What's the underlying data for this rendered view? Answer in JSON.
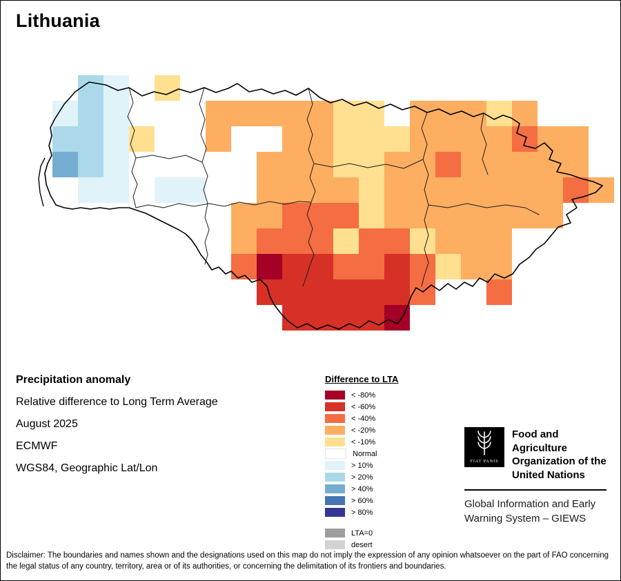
{
  "page": {
    "title": "Lithuania"
  },
  "info": {
    "heading": "Precipitation anomaly",
    "subtitle": "Relative difference to Long Term Average",
    "period": "August 2025",
    "source": "ECMWF",
    "projection": "WGS84, Geographic Lat/Lon"
  },
  "legend": {
    "title": "Difference to LTA",
    "items": [
      {
        "label": "< -80%",
        "color": "#a50026"
      },
      {
        "label": "< -60%",
        "color": "#d73027"
      },
      {
        "label": "< -40%",
        "color": "#f46d43"
      },
      {
        "label": "< -20%",
        "color": "#fdae61"
      },
      {
        "label": "< -10%",
        "color": "#fee090"
      },
      {
        "label": "Normal",
        "color": "#ffffff"
      },
      {
        "label": "> 10%",
        "color": "#e0f3f8"
      },
      {
        "label": "> 20%",
        "color": "#abd9e9"
      },
      {
        "label": "> 40%",
        "color": "#74add1"
      },
      {
        "label": "> 60%",
        "color": "#4575b4"
      },
      {
        "label": "> 80%",
        "color": "#313695"
      }
    ],
    "extra_items": [
      {
        "label": "LTA=0",
        "color": "#9e9e9e"
      },
      {
        "label": "desert",
        "color": "#d2d2d2"
      }
    ]
  },
  "fao": {
    "logo_motto": "FIAT PANIS",
    "org_lines": [
      "Food and Agriculture",
      "Organization of the",
      "United Nations"
    ],
    "giews_lines": [
      "Global Information and Early",
      "Warning System – GIEWS"
    ]
  },
  "disclaimer": "Disclaimer: The boundaries and names shown and the designations used on this map do not imply the expression of any opinion whatsoever on the part of FAO concerning the legal status of any country, territory, area or of its authorities, or concerning the delimitation of its frontiers and boundaries.",
  "map": {
    "palette": {
      "A": "#a50026",
      "B": "#d73027",
      "C": "#f46d43",
      "D": "#fdae61",
      "E": "#fee090",
      "F": "#e0f3f8",
      "G": "#abd9e9",
      "H": "#74add1",
      "I": "#4575b4",
      "J": "#313695"
    },
    "cells": [
      [
        1,
        0,
        "G"
      ],
      [
        2,
        0,
        "F"
      ],
      [
        4,
        0,
        "E"
      ],
      [
        0,
        1,
        "F"
      ],
      [
        1,
        1,
        "G"
      ],
      [
        2,
        1,
        "F"
      ],
      [
        6,
        1,
        "D"
      ],
      [
        7,
        1,
        "D"
      ],
      [
        8,
        1,
        "D"
      ],
      [
        9,
        1,
        "D"
      ],
      [
        10,
        1,
        "D"
      ],
      [
        11,
        1,
        "E"
      ],
      [
        12,
        1,
        "E"
      ],
      [
        14,
        1,
        "D"
      ],
      [
        15,
        1,
        "D"
      ],
      [
        16,
        1,
        "D"
      ],
      [
        17,
        1,
        "E"
      ],
      [
        18,
        1,
        "D"
      ],
      [
        0,
        2,
        "G"
      ],
      [
        1,
        2,
        "G"
      ],
      [
        2,
        2,
        "F"
      ],
      [
        3,
        2,
        "E"
      ],
      [
        6,
        2,
        "D"
      ],
      [
        9,
        2,
        "D"
      ],
      [
        10,
        2,
        "D"
      ],
      [
        11,
        2,
        "E"
      ],
      [
        12,
        2,
        "E"
      ],
      [
        13,
        2,
        "E"
      ],
      [
        14,
        2,
        "D"
      ],
      [
        15,
        2,
        "D"
      ],
      [
        16,
        2,
        "D"
      ],
      [
        17,
        2,
        "D"
      ],
      [
        18,
        2,
        "C"
      ],
      [
        19,
        2,
        "D"
      ],
      [
        20,
        2,
        "D"
      ],
      [
        0,
        3,
        "H"
      ],
      [
        1,
        3,
        "G"
      ],
      [
        2,
        3,
        "F"
      ],
      [
        8,
        3,
        "D"
      ],
      [
        9,
        3,
        "D"
      ],
      [
        10,
        3,
        "D"
      ],
      [
        11,
        3,
        "E"
      ],
      [
        12,
        3,
        "E"
      ],
      [
        13,
        3,
        "D"
      ],
      [
        14,
        3,
        "D"
      ],
      [
        15,
        3,
        "C"
      ],
      [
        16,
        3,
        "D"
      ],
      [
        17,
        3,
        "D"
      ],
      [
        18,
        3,
        "D"
      ],
      [
        19,
        3,
        "D"
      ],
      [
        20,
        3,
        "D"
      ],
      [
        1,
        4,
        "F"
      ],
      [
        2,
        4,
        "F"
      ],
      [
        4,
        4,
        "F"
      ],
      [
        5,
        4,
        "F"
      ],
      [
        8,
        4,
        "D"
      ],
      [
        9,
        4,
        "D"
      ],
      [
        10,
        4,
        "D"
      ],
      [
        11,
        4,
        "D"
      ],
      [
        12,
        4,
        "E"
      ],
      [
        13,
        4,
        "D"
      ],
      [
        14,
        4,
        "D"
      ],
      [
        15,
        4,
        "D"
      ],
      [
        16,
        4,
        "D"
      ],
      [
        17,
        4,
        "D"
      ],
      [
        18,
        4,
        "D"
      ],
      [
        19,
        4,
        "D"
      ],
      [
        20,
        4,
        "C"
      ],
      [
        21,
        4,
        "D"
      ],
      [
        7,
        5,
        "D"
      ],
      [
        8,
        5,
        "D"
      ],
      [
        9,
        5,
        "C"
      ],
      [
        10,
        5,
        "C"
      ],
      [
        11,
        5,
        "C"
      ],
      [
        12,
        5,
        "E"
      ],
      [
        13,
        5,
        "D"
      ],
      [
        14,
        5,
        "D"
      ],
      [
        15,
        5,
        "D"
      ],
      [
        16,
        5,
        "D"
      ],
      [
        17,
        5,
        "D"
      ],
      [
        18,
        5,
        "D"
      ],
      [
        19,
        5,
        "D"
      ],
      [
        7,
        6,
        "D"
      ],
      [
        8,
        6,
        "C"
      ],
      [
        9,
        6,
        "C"
      ],
      [
        10,
        6,
        "C"
      ],
      [
        11,
        6,
        "E"
      ],
      [
        12,
        6,
        "C"
      ],
      [
        13,
        6,
        "C"
      ],
      [
        14,
        6,
        "E"
      ],
      [
        15,
        6,
        "D"
      ],
      [
        16,
        6,
        "D"
      ],
      [
        17,
        6,
        "D"
      ],
      [
        7,
        7,
        "C"
      ],
      [
        8,
        7,
        "A"
      ],
      [
        9,
        7,
        "B"
      ],
      [
        10,
        7,
        "B"
      ],
      [
        11,
        7,
        "C"
      ],
      [
        12,
        7,
        "C"
      ],
      [
        13,
        7,
        "B"
      ],
      [
        14,
        7,
        "C"
      ],
      [
        15,
        7,
        "E"
      ],
      [
        16,
        7,
        "D"
      ],
      [
        17,
        7,
        "D"
      ],
      [
        8,
        8,
        "B"
      ],
      [
        9,
        8,
        "B"
      ],
      [
        10,
        8,
        "B"
      ],
      [
        11,
        8,
        "B"
      ],
      [
        12,
        8,
        "B"
      ],
      [
        13,
        8,
        "B"
      ],
      [
        14,
        8,
        "C"
      ],
      [
        17,
        8,
        "C"
      ],
      [
        9,
        9,
        "B"
      ],
      [
        10,
        9,
        "B"
      ],
      [
        11,
        9,
        "B"
      ],
      [
        12,
        9,
        "B"
      ],
      [
        13,
        9,
        "A"
      ]
    ]
  }
}
